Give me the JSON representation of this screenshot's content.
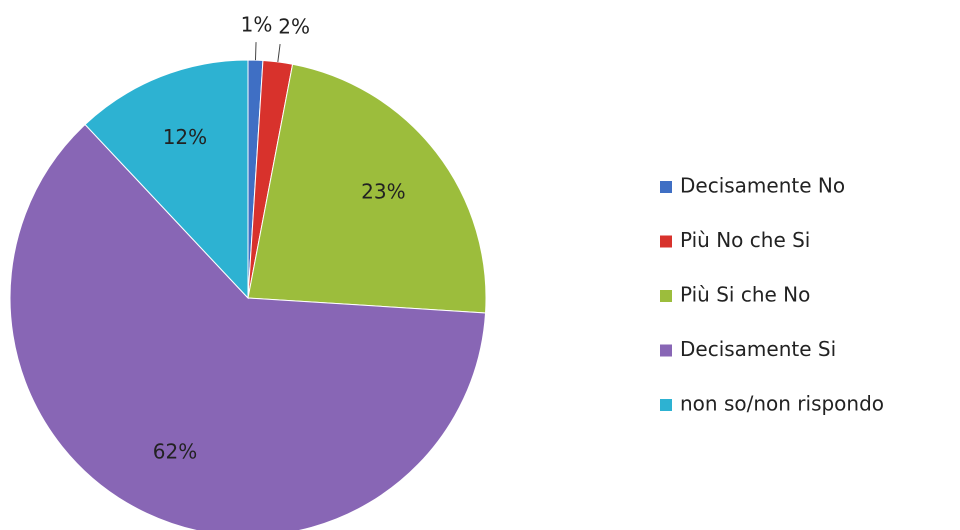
{
  "chart_data": {
    "type": "pie",
    "categories": [
      "Decisamente No",
      "Più No che Si",
      "Più Si che No",
      "Decisamente Si",
      "non so/non rispondo"
    ],
    "values": [
      1,
      2,
      23,
      62,
      12
    ],
    "value_labels": [
      "1%",
      "2%",
      "23%",
      "62%",
      "12%"
    ],
    "colors": [
      "#3f6fc4",
      "#d8322c",
      "#9cbd3c",
      "#8866b5",
      "#2db2d2"
    ],
    "legend": "right"
  }
}
